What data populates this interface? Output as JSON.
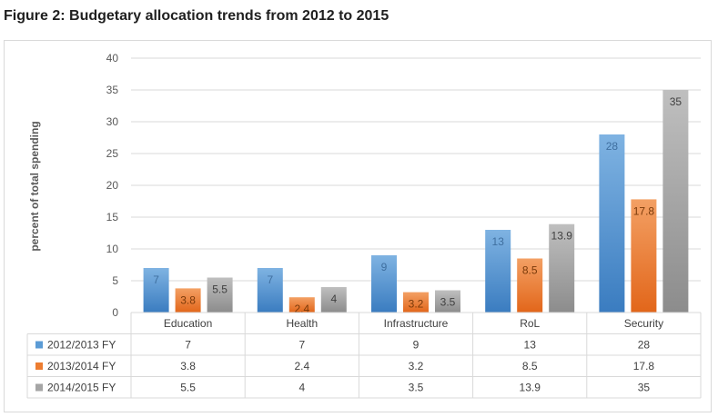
{
  "figure": {
    "title": "Figure 2: Budgetary allocation trends from 2012 to 2015"
  },
  "chart_data": {
    "type": "bar",
    "title": "",
    "xlabel": "",
    "ylabel": "percent of total spending",
    "ylim": [
      0,
      40
    ],
    "yticks": [
      0,
      5,
      10,
      15,
      20,
      25,
      30,
      35,
      40
    ],
    "grid": true,
    "legend": "data-table",
    "categories": [
      "Education",
      "Health",
      "Infrastructure",
      "RoL",
      "Security"
    ],
    "series": [
      {
        "name": "2012/2013 FY",
        "color": "#5b9bd5",
        "values": [
          7,
          7,
          9,
          13,
          28
        ]
      },
      {
        "name": "2013/2014 FY",
        "color": "#ed7d31",
        "values": [
          3.8,
          2.4,
          3.2,
          8.5,
          17.8
        ]
      },
      {
        "name": "2014/2015 FY",
        "color": "#a5a5a5",
        "values": [
          5.5,
          4,
          3.5,
          13.9,
          35
        ]
      }
    ]
  }
}
